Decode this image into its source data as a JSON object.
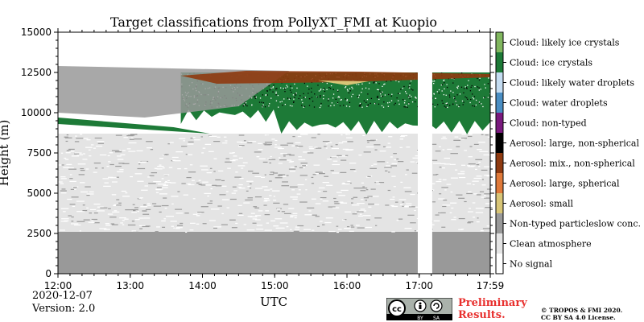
{
  "chart_data": {
    "type": "heatmap",
    "title": "Target classifications from PollyXT_FMI at Kuopio",
    "xlabel": "UTC",
    "ylabel": "Height (m)",
    "x_ticks": [
      "12:00",
      "13:00",
      "14:00",
      "15:00",
      "16:00",
      "17:00",
      "17:59"
    ],
    "y_ticks": [
      "0",
      "2500",
      "5000",
      "7500",
      "10000",
      "12500",
      "15000"
    ],
    "x_range_hours": [
      12.0,
      17.983
    ],
    "ylim": [
      0,
      15000
    ],
    "legend": [
      {
        "label": "Cloud: likely ice crystals",
        "color": "#81b75f"
      },
      {
        "label": "Cloud: ice crystals",
        "color": "#1d7a37"
      },
      {
        "label": "Cloud: likely water droplets",
        "color": "#c4dcf1"
      },
      {
        "label": "Cloud: water droplets",
        "color": "#4a8ec3"
      },
      {
        "label": "Cloud: non-typed",
        "color": "#7a1a7e"
      },
      {
        "label": "Aerosol: large, non-spherical",
        "color": "#000000"
      },
      {
        "label": "Aerosol: mix., non-spherical",
        "color": "#8f3a10"
      },
      {
        "label": "Aerosol: large, spherical",
        "color": "#e07a3a"
      },
      {
        "label": "Aerosol: small",
        "color": "#d8c577"
      },
      {
        "label": "Non-typed particleslow conc.",
        "color": "#999999"
      },
      {
        "label": "Clean atmosphere",
        "color": "#e4e4e4"
      },
      {
        "label": "No signal",
        "color": "#ffffff"
      }
    ],
    "regions": [
      {
        "class": "Non-typed particleslow conc.",
        "height_m": [
          0,
          2600
        ],
        "time_h": [
          12.0,
          17.983
        ]
      },
      {
        "class": "Clean atmosphere",
        "height_m": [
          2600,
          8700
        ],
        "time_h": [
          12.0,
          17.983
        ]
      },
      {
        "class": "Cloud: ice crystals",
        "height_m": [
          8600,
          12500
        ],
        "time_h": [
          13.7,
          17.983
        ]
      },
      {
        "class": "Non-typed particleslow conc.",
        "height_m": [
          9800,
          12900
        ],
        "time_h": [
          12.0,
          15.2
        ]
      },
      {
        "class": "Aerosol: mix., non-spherical",
        "height_m": [
          11800,
          12600
        ],
        "time_h": [
          13.7,
          17.983
        ]
      },
      {
        "class": "No signal",
        "height_m": [
          0,
          15000
        ],
        "time_h": [
          16.98,
          17.18
        ]
      }
    ]
  },
  "footer": {
    "date": "2020-12-07",
    "version": "Version: 2.0",
    "preliminary_line1": "Preliminary",
    "preliminary_line2": "Results.",
    "copyright_line1": "© TROPOS & FMI 2020.",
    "copyright_line2": "CC BY SA 4.0 License.",
    "cc_logo_text": "cc",
    "cc_by": "BY",
    "cc_sa": "SA"
  }
}
